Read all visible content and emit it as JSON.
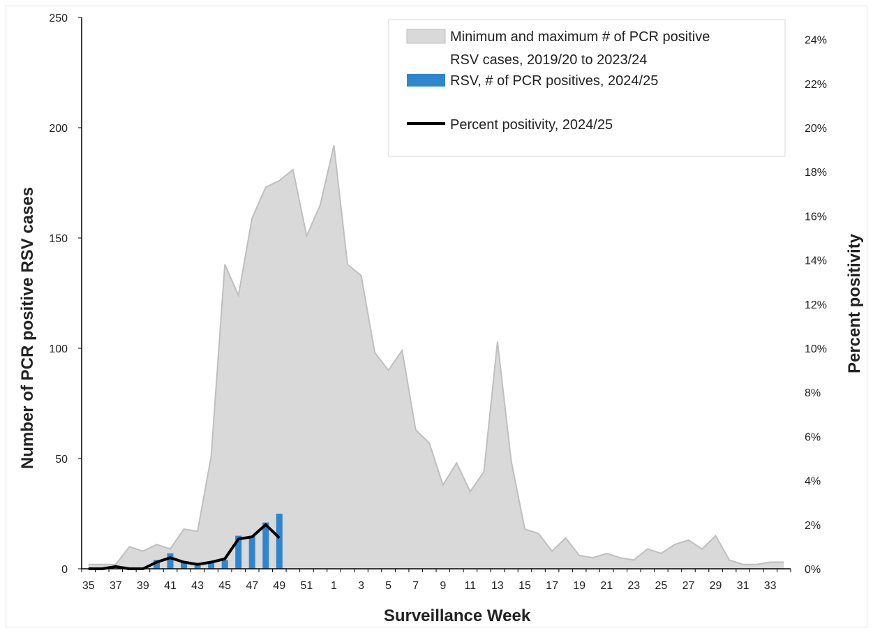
{
  "chart_data": {
    "type": "bar",
    "xlabel": "Surveillance Week",
    "ylabel": "Number of PCR positive RSV cases",
    "y2label": "Percent positivity",
    "ylim": [
      0,
      250
    ],
    "y2lim": [
      0,
      25
    ],
    "yticks": [
      "0",
      "50",
      "100",
      "150",
      "200",
      "250"
    ],
    "y2ticks": [
      "0%",
      "2%",
      "4%",
      "6%",
      "8%",
      "10%",
      "12%",
      "14%",
      "16%",
      "18%",
      "20%",
      "22%",
      "24%"
    ],
    "weeks": [
      "35",
      "36",
      "37",
      "38",
      "39",
      "40",
      "41",
      "42",
      "43",
      "44",
      "45",
      "46",
      "47",
      "48",
      "49",
      "50",
      "51",
      "52",
      "1",
      "2",
      "3",
      "4",
      "5",
      "6",
      "7",
      "8",
      "9",
      "10",
      "11",
      "12",
      "13",
      "14",
      "15",
      "16",
      "17",
      "18",
      "19",
      "20",
      "21",
      "22",
      "23",
      "24",
      "25",
      "26",
      "27",
      "28",
      "29",
      "30",
      "31",
      "32",
      "33",
      "34"
    ],
    "xticks": [
      "35",
      "37",
      "39",
      "41",
      "43",
      "45",
      "47",
      "49",
      "51",
      "1",
      "3",
      "5",
      "7",
      "9",
      "11",
      "13",
      "15",
      "17",
      "19",
      "21",
      "23",
      "25",
      "27",
      "29",
      "31",
      "33"
    ],
    "legend_position": "top-right",
    "series": [
      {
        "name": "Minimum and maximum # of PCR positive RSV cases, 2019/20 to 2023/24",
        "kind": "area",
        "axis": "left",
        "color": "#d9d9d9",
        "edge_color": "#bfbfbf",
        "values": [
          2,
          2,
          2,
          10,
          8,
          11,
          9,
          18,
          17,
          51,
          138,
          124,
          159,
          173,
          176,
          181,
          151,
          165,
          192,
          138,
          133,
          98,
          90,
          99,
          63,
          57,
          38,
          48,
          35,
          44,
          103,
          49,
          18,
          16,
          8,
          14,
          6,
          5,
          7,
          5,
          4,
          9,
          7,
          11,
          13,
          9,
          15,
          4,
          2,
          2,
          3,
          3
        ]
      },
      {
        "name": "RSV, # of PCR positives, 2024/25",
        "kind": "bar",
        "axis": "left",
        "color": "#2e86cf",
        "values": [
          0,
          0,
          0,
          0,
          0,
          4,
          7,
          3,
          2,
          3,
          4,
          15,
          15,
          21,
          25
        ]
      },
      {
        "name": "Percent positivity, 2024/25",
        "kind": "line",
        "axis": "right",
        "color": "#000000",
        "values": [
          0.0,
          0.0,
          0.1,
          0.0,
          0.0,
          0.3,
          0.5,
          0.3,
          0.2,
          0.3,
          0.45,
          1.35,
          1.45,
          2.0,
          1.4
        ]
      }
    ]
  }
}
